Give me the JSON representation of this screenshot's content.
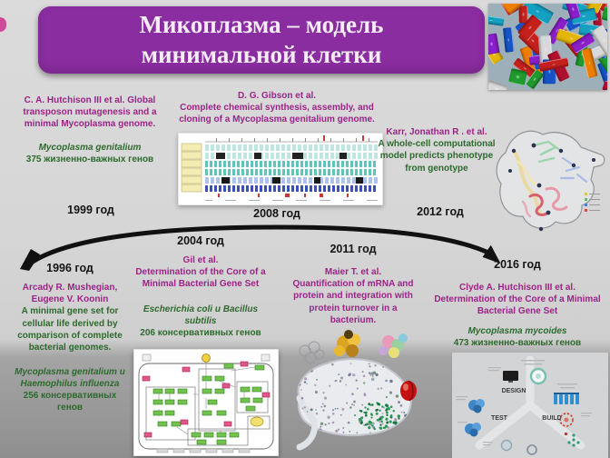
{
  "slide": {
    "title_line1": "Микоплазма – модель",
    "title_line2": "минимальной клетки"
  },
  "events": {
    "y1999": {
      "header": "C. A. Hutchison III et al. Global transposon mutagenesis and a minimal Mycoplasma genome.",
      "species": "Mycoplasma genitalium",
      "genes": "375 жизненно-важных генов",
      "year": "1999 год"
    },
    "y2008": {
      "authors": "D. G. Gibson et al.",
      "title": "Complete chemical synthesis, assembly, and cloning of a Mycoplasma genitalium genome.",
      "year": "2008 год"
    },
    "y2012": {
      "authors": "Karr, Jonathan R . et al.",
      "title": "A whole-cell computational model predicts phenotype from genotype",
      "year": "2012 год"
    },
    "y1996": {
      "year": "1996 год",
      "authors": "Arcady R. Mushegian, Eugene V. Koonin",
      "title": "A minimal gene set for cellular life derived by comparison of complete bacterial genomes.",
      "species": "Mycoplasma genitalium и Haemophilus influenza",
      "genes": "256 консервативных генов"
    },
    "y2004": {
      "year": "2004 год",
      "authors": "Gil et al.",
      "title": "Determination of the Core of a Minimal Bacterial Gene Set",
      "species": "Escherichia coli и Bacillus subtilis",
      "genes": "206 консервативных генов"
    },
    "y2011": {
      "year": "2011 год",
      "authors": "Maier T. et al.",
      "title": "Quantification of mRNA and protein and integration with protein turnover in a bacterium."
    },
    "y2016": {
      "year": "2016 год",
      "authors": "Clyde A. Hutchison III et al.",
      "title": "Determination of the Core of a Minimal Bacterial Gene Set",
      "species": "Mycoplasma mycoides",
      "genes": "473 жизненно-важных генов"
    }
  },
  "figures": {
    "dbt_labels": {
      "design": "DESIGN",
      "test": "TEST",
      "build": "BUILD"
    }
  },
  "colors": {
    "title_bg": "#8a2da0",
    "header_magenta": "#9c2387",
    "accent_green": "#2d6a2d",
    "year_text": "#141414",
    "arrow_black": "#111111"
  }
}
